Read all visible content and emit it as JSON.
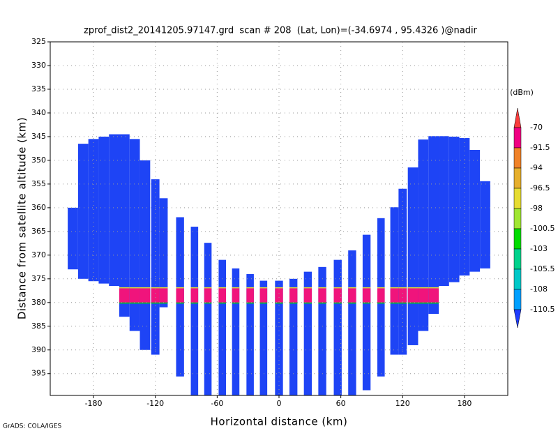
{
  "chart_data": {
    "type": "swath",
    "title": "zprof_dist2_20141205.97147.grd  scan # 208  (Lat, Lon)=(-34.6974 , 95.4326 )@nadir",
    "xlabel": "Horizontal distance (km)",
    "ylabel": "Distance from satellite altitude (km)",
    "footer": "GrADS: COLA/IGES",
    "xlim": [
      -222,
      222
    ],
    "ylim": [
      399.6,
      325
    ],
    "xticks": [
      -180,
      -120,
      -60,
      0,
      60,
      120,
      180
    ],
    "yticks": [
      325,
      330,
      335,
      340,
      345,
      350,
      355,
      360,
      365,
      370,
      375,
      380,
      385,
      390,
      395
    ],
    "grid": true,
    "color": "#1e44f5",
    "columns": {
      "x": [
        -200,
        -190,
        -180,
        -170,
        -160,
        -150,
        -140,
        -130,
        -120,
        -112,
        -96,
        -82,
        -69,
        -55,
        -42,
        -28,
        -15,
        0,
        14,
        28,
        42,
        57,
        71,
        85,
        99,
        112,
        120,
        130,
        140,
        150,
        160,
        170,
        180,
        190,
        200
      ],
      "top": [
        360,
        346.5,
        345.5,
        345,
        344.5,
        344.5,
        345.5,
        350,
        354,
        358,
        362,
        364,
        367.4,
        371,
        372.8,
        374,
        375.4,
        375.4,
        375,
        373.5,
        372.5,
        371,
        369,
        365.7,
        362.2,
        359.9,
        356,
        351.5,
        345.6,
        344.9,
        344.9,
        345,
        345.3,
        347.8,
        354.4
      ],
      "bottom": [
        373,
        375,
        375.5,
        376,
        376.5,
        383,
        386,
        390,
        391,
        381,
        395.6,
        399.6,
        399.6,
        399.6,
        399.6,
        399.6,
        399.6,
        399.6,
        399.6,
        399.6,
        399.6,
        399.6,
        399.6,
        398.5,
        395.6,
        391,
        391,
        389,
        386,
        382.4,
        376.5,
        375.7,
        374.3,
        373.5,
        372.8
      ]
    },
    "band": {
      "x": [
        -152,
        152
      ],
      "top": 377,
      "bottom": 380,
      "color": "#f0147c"
    },
    "colorbar": {
      "unit": "(dBm)",
      "levels": [
        -70,
        -91.5,
        -94,
        -96.5,
        -98,
        -100.5,
        -103,
        -105.5,
        -108,
        -110.5
      ],
      "colors": [
        "#fa3c3c",
        "#f00082",
        "#f08228",
        "#e6af2d",
        "#e6dc32",
        "#a0e632",
        "#00dc00",
        "#00d28c",
        "#00c8c8",
        "#00a0ff",
        "#1e3cff"
      ]
    }
  }
}
